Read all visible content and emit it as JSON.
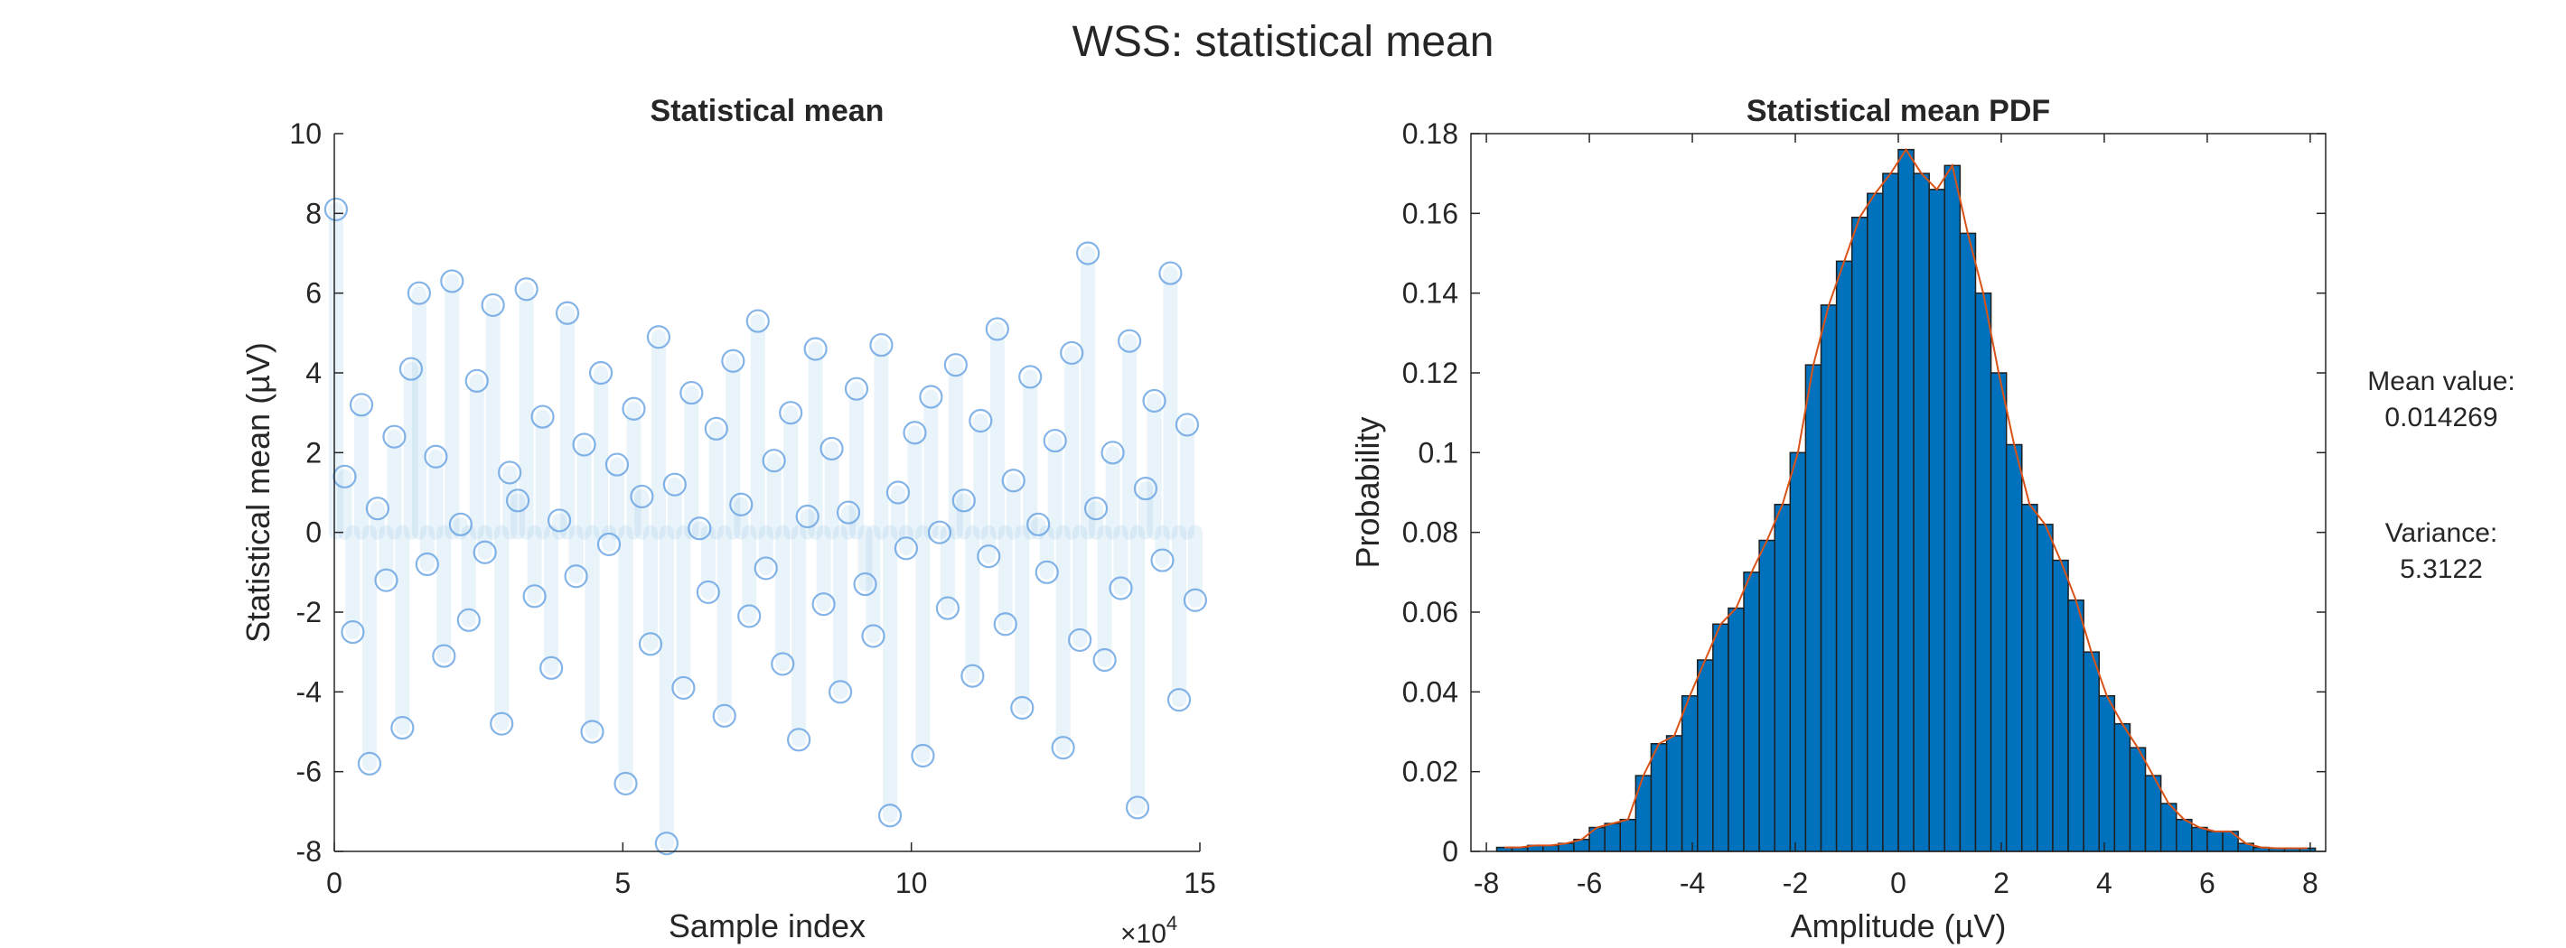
{
  "figure": {
    "title": "WSS: statistical mean"
  },
  "annotations": {
    "mean_label": "Mean value:",
    "mean_value": "0.014269",
    "variance_label": "Variance:",
    "variance_value": "5.3122"
  },
  "colors": {
    "scatter_marker": "#5b9be0",
    "scatter_stem": "#9cc8e6",
    "histogram_bar": "#0072bd",
    "pdf_line": "#d95319",
    "axes": "#262626"
  },
  "chart_data": [
    {
      "type": "scatter",
      "title": "Statistical mean",
      "xlabel": "Sample index",
      "ylabel": "Statistical mean (µV)",
      "xlim": [
        0,
        150000
      ],
      "ylim": [
        -8,
        10
      ],
      "x_exponent_label": "×10^4",
      "x_ticks": [
        0,
        5,
        10,
        15
      ],
      "y_ticks": [
        -8,
        -6,
        -4,
        -2,
        0,
        2,
        4,
        6,
        8,
        10
      ],
      "marker": "open circle, semi-transparent, with faint vertical stems to the x axis",
      "series": [
        {
          "x": [
            300,
            1800,
            3200,
            4700,
            6100,
            7500,
            9000,
            10400,
            11800,
            13300,
            14700,
            16100,
            17600,
            19000,
            20400,
            21900,
            23300,
            24700,
            26100,
            27500,
            29000,
            30400,
            31800,
            33300,
            34700,
            36100,
            37600,
            39000,
            40400,
            41900,
            43300,
            44700,
            46200,
            47600,
            49000,
            50500,
            51900,
            53300,
            54800,
            56200,
            57600,
            59000,
            60500,
            61900,
            63300,
            64800,
            66200,
            67600,
            69100,
            70500,
            71900,
            73400,
            74800,
            76200,
            77700,
            79100,
            80500,
            82000,
            83400,
            84800,
            86200,
            87700,
            89100,
            90500,
            92000,
            93400,
            94800,
            96300,
            97700,
            99100,
            100600,
            102000,
            103400,
            104900,
            106300,
            107700,
            109100,
            110600,
            112000,
            113400,
            114900,
            116300,
            117700,
            119200,
            120600,
            122000,
            123500,
            124900,
            126300,
            127800,
            129200,
            130600,
            132000,
            133500,
            134900,
            136300,
            137800,
            139200,
            140600,
            142100,
            143500,
            144900,
            146400,
            147800,
            149200
          ],
          "y": [
            8.1,
            1.4,
            -2.5,
            3.2,
            -5.8,
            0.6,
            -1.2,
            2.4,
            -4.9,
            4.1,
            6.0,
            -0.8,
            1.9,
            -3.1,
            6.3,
            0.2,
            -2.2,
            3.8,
            -0.5,
            5.7,
            -4.8,
            1.5,
            0.8,
            6.1,
            -1.6,
            2.9,
            -3.4,
            0.3,
            5.5,
            -1.1,
            2.2,
            -5.0,
            4.0,
            -0.3,
            1.7,
            -6.3,
            3.1,
            0.9,
            -2.8,
            4.9,
            -7.8,
            1.2,
            -3.9,
            3.5,
            0.1,
            -1.5,
            2.6,
            -4.6,
            4.3,
            0.7,
            -2.1,
            5.3,
            -0.9,
            1.8,
            -3.3,
            3.0,
            -5.2,
            0.4,
            4.6,
            -1.8,
            2.1,
            -4.0,
            0.5,
            3.6,
            -1.3,
            -2.6,
            4.7,
            -7.1,
            1.0,
            -0.4,
            2.5,
            -5.6,
            3.4,
            0.0,
            -1.9,
            4.2,
            0.8,
            -3.6,
            2.8,
            -0.6,
            5.1,
            -2.3,
            1.3,
            -4.4,
            3.9,
            0.2,
            -1.0,
            2.3,
            -5.4,
            4.5,
            -2.7,
            7.0,
            0.6,
            -3.2,
            2.0,
            -1.4,
            4.8,
            -6.9,
            1.1,
            3.3,
            -0.7,
            6.5,
            -4.2,
            2.7,
            -1.7
          ]
        }
      ]
    },
    {
      "type": "bar",
      "title": "Statistical mean PDF",
      "xlabel": "Amplitude (µV)",
      "ylabel": "Probability",
      "xlim": [
        -8.3,
        8.3
      ],
      "ylim": [
        0,
        0.18
      ],
      "x_ticks": [
        -8,
        -6,
        -4,
        -2,
        0,
        2,
        4,
        6,
        8
      ],
      "y_ticks": [
        0,
        0.02,
        0.04,
        0.06,
        0.08,
        0.1,
        0.12,
        0.14,
        0.16,
        0.18
      ],
      "bin_width": 0.3,
      "bin_centers": [
        -7.65,
        -7.35,
        -7.05,
        -6.75,
        -6.45,
        -6.15,
        -5.85,
        -5.55,
        -5.25,
        -4.95,
        -4.65,
        -4.35,
        -4.05,
        -3.75,
        -3.45,
        -3.15,
        -2.85,
        -2.55,
        -2.25,
        -1.95,
        -1.65,
        -1.35,
        -1.05,
        -0.75,
        -0.45,
        -0.15,
        0.15,
        0.45,
        0.75,
        1.05,
        1.35,
        1.65,
        1.95,
        2.25,
        2.55,
        2.85,
        3.15,
        3.45,
        3.75,
        4.05,
        4.35,
        4.65,
        4.95,
        5.25,
        5.55,
        5.85,
        6.15,
        6.45,
        6.75,
        7.05,
        7.35,
        7.65,
        7.95
      ],
      "values": [
        0.001,
        0.001,
        0.0015,
        0.0015,
        0.002,
        0.003,
        0.006,
        0.007,
        0.008,
        0.019,
        0.027,
        0.029,
        0.039,
        0.048,
        0.057,
        0.061,
        0.07,
        0.078,
        0.087,
        0.1,
        0.122,
        0.137,
        0.148,
        0.159,
        0.165,
        0.17,
        0.176,
        0.17,
        0.166,
        0.172,
        0.155,
        0.14,
        0.12,
        0.102,
        0.087,
        0.082,
        0.073,
        0.063,
        0.05,
        0.039,
        0.032,
        0.026,
        0.019,
        0.012,
        0.008,
        0.006,
        0.005,
        0.005,
        0.002,
        0.001,
        0.0008,
        0.0008,
        0.0008
      ],
      "series": [
        {
          "kind": "histogram",
          "style": "blue bars with dark edges"
        },
        {
          "kind": "line",
          "style": "thin orange polyline through bar tops"
        }
      ]
    }
  ]
}
